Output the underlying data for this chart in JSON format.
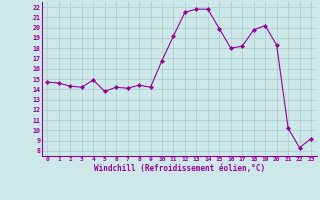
{
  "x": [
    0,
    1,
    2,
    3,
    4,
    5,
    6,
    7,
    8,
    9,
    10,
    11,
    12,
    13,
    14,
    15,
    16,
    17,
    18,
    19,
    20,
    21,
    22,
    23
  ],
  "y": [
    14.7,
    14.6,
    14.3,
    14.2,
    14.9,
    13.8,
    14.2,
    14.1,
    14.4,
    14.2,
    16.8,
    19.2,
    21.5,
    21.8,
    21.8,
    19.9,
    18.0,
    18.2,
    19.8,
    20.2,
    18.3,
    10.2,
    8.3,
    9.2
  ],
  "line_color": "#990099",
  "marker": "D",
  "marker_size": 2.0,
  "bg_color": "#cce8e8",
  "grid_color": "#aacccc",
  "xlabel": "Windchill (Refroidissement éolien,°C)",
  "ylabel_ticks": [
    8,
    9,
    10,
    11,
    12,
    13,
    14,
    15,
    16,
    17,
    18,
    19,
    20,
    21,
    22
  ],
  "ylim": [
    7.5,
    22.5
  ],
  "xlim": [
    -0.5,
    23.5
  ],
  "xticks": [
    0,
    1,
    2,
    3,
    4,
    5,
    6,
    7,
    8,
    9,
    10,
    11,
    12,
    13,
    14,
    15,
    16,
    17,
    18,
    19,
    20,
    21,
    22,
    23
  ]
}
